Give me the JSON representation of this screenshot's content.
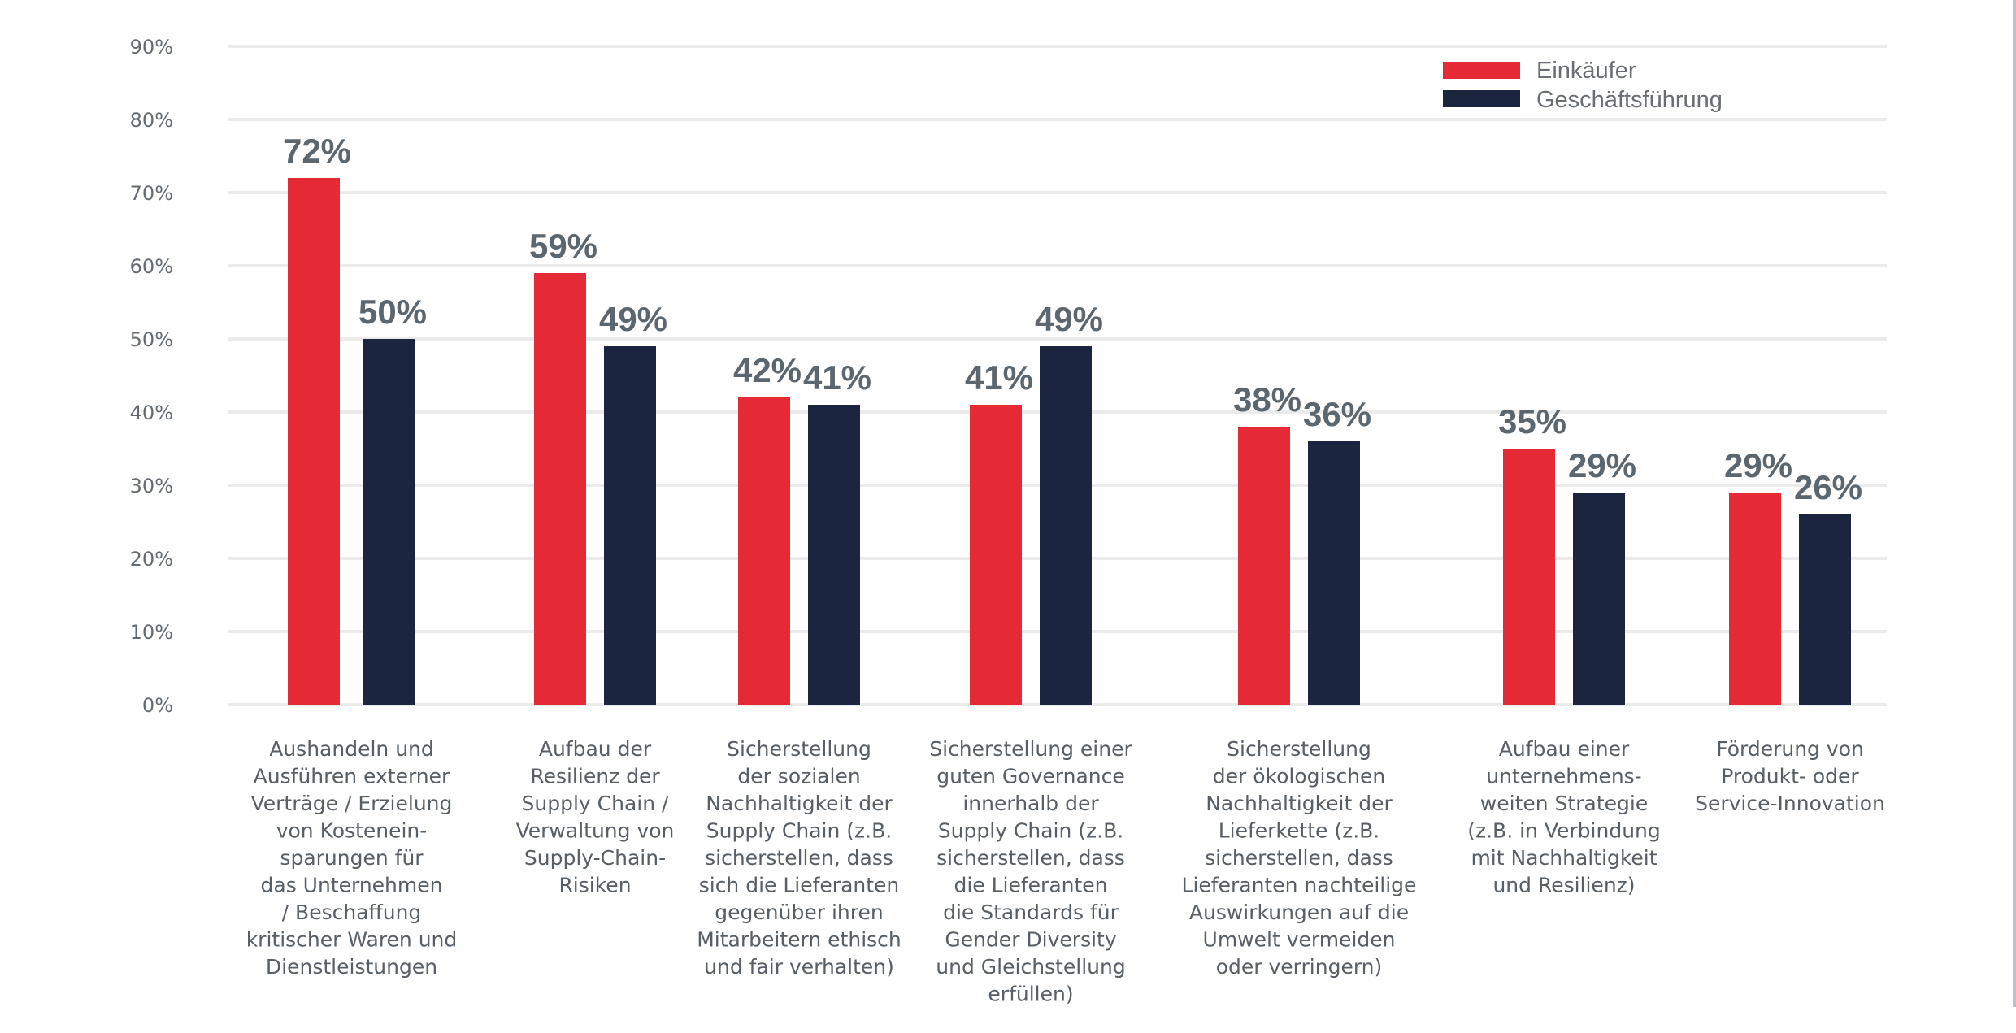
{
  "chart_data": {
    "type": "bar",
    "title": "",
    "xlabel": "",
    "ylabel": "",
    "ylim": [
      0,
      90
    ],
    "yticks": [
      0,
      10,
      20,
      30,
      40,
      50,
      60,
      70,
      80,
      90
    ],
    "ytick_labels": [
      "0%",
      "10%",
      "20%",
      "30%",
      "40%",
      "50%",
      "60%",
      "70%",
      "80%",
      "90%"
    ],
    "grid": true,
    "legend_position": "top-right",
    "categories": [
      [
        "Aushandeln und",
        "Ausführen externer",
        "Verträge / Erzielung",
        "von Kostenein-",
        "sparungen für",
        "das Unternehmen",
        "/ Beschaffung",
        "kritischer Waren und",
        "Dienstleistungen"
      ],
      [
        "Aufbau der",
        "Resilienz der",
        "Supply Chain /",
        "Verwaltung von",
        "Supply-Chain-",
        "Risiken"
      ],
      [
        "Sicherstellung",
        "der sozialen",
        "Nachhaltigkeit der",
        "Supply Chain (z.B.",
        "sicherstellen, dass",
        "sich die Lieferanten",
        "gegenüber ihren",
        "Mitarbeitern ethisch",
        "und fair verhalten)"
      ],
      [
        "Sicherstellung einer",
        "guten Governance",
        "innerhalb der",
        "Supply Chain (z.B.",
        "sicherstellen, dass",
        "die Lieferanten",
        "die Standards für",
        "Gender Diversity",
        "und Gleichstellung",
        "erfüllen)"
      ],
      [
        "Sicherstellung",
        "der ökologischen",
        "Nachhaltigkeit der",
        "Lieferkette (z.B.",
        "sicherstellen, dass",
        "Lieferanten nachteilige",
        "Auswirkungen auf die",
        "Umwelt vermeiden",
        "oder verringern)"
      ],
      [
        "Aufbau einer",
        "unternehmens-",
        "weiten Strategie",
        "(z.B. in Verbindung",
        "mit Nachhaltigkeit",
        "und Resilienz)"
      ],
      [
        "Förderung von",
        "Produkt- oder",
        "Service-Innovation"
      ]
    ],
    "series": [
      {
        "name": "Einkäufer",
        "color": "#e52935",
        "values": [
          72,
          59,
          42,
          41,
          38,
          35,
          29
        ],
        "labels": [
          "72%",
          "59%",
          "42%",
          "41%",
          "38%",
          "35%",
          "29%"
        ]
      },
      {
        "name": "Geschäftsführung",
        "color": "#1b2540",
        "values": [
          50,
          49,
          41,
          49,
          36,
          29,
          26
        ],
        "labels": [
          "50%",
          "49%",
          "41%",
          "49%",
          "36%",
          "29%",
          "26%"
        ]
      }
    ]
  },
  "colors": {
    "gridline": "#ebebeb",
    "value_label": "#5c666e",
    "axis_text": "#646b72"
  }
}
